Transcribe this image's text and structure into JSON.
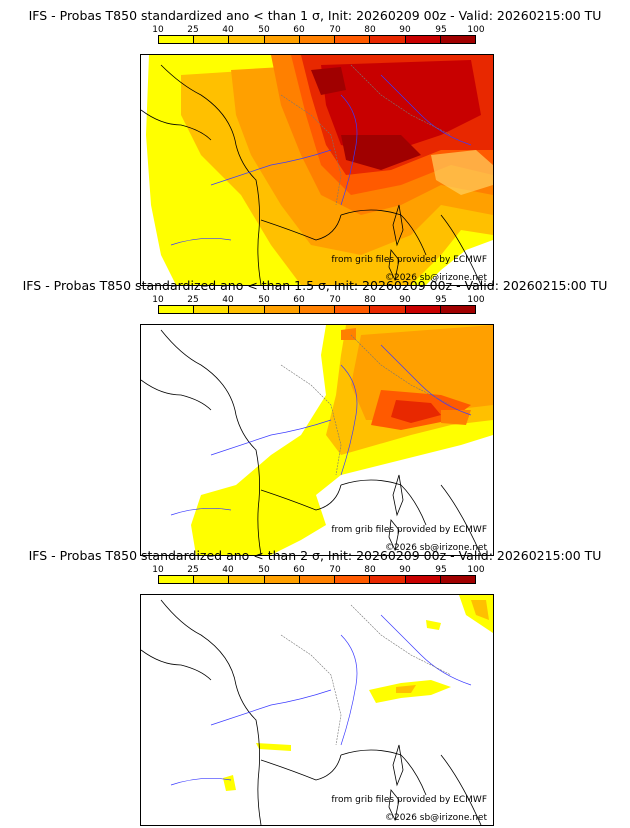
{
  "colorbar": {
    "labels": [
      "10",
      "25",
      "40",
      "50",
      "60",
      "70",
      "80",
      "90",
      "95",
      "100"
    ],
    "colors": [
      "#ffff00",
      "#ffe000",
      "#ffc000",
      "#ffa000",
      "#ff8000",
      "#ff5a00",
      "#e82800",
      "#c80000",
      "#a00000",
      "#600000"
    ]
  },
  "panels": [
    {
      "title": "IFS - Probas T850  standardized ano < than 1 σ, Init: 20260209 00z - Valid: 20260215:00 TU",
      "credit_source": "from grib files provided by ECMWF",
      "credit_copyright": "©2026 sb@irizone.net"
    },
    {
      "title": "IFS - Probas T850  standardized ano < than 1.5 σ, Init: 20260209 00z - Valid: 20260215:00 TU",
      "credit_source": "from grib files provided by ECMWF",
      "credit_copyright": "©2026 sb@irizone.net"
    },
    {
      "title": "IFS - Probas T850  standardized ano < than 2 σ, Init: 20260209 00z - Valid: 20260215:00 TU",
      "credit_source": "from grib files provided by ECMWF",
      "credit_copyright": "©2026 sb@irizone.net"
    }
  ]
}
